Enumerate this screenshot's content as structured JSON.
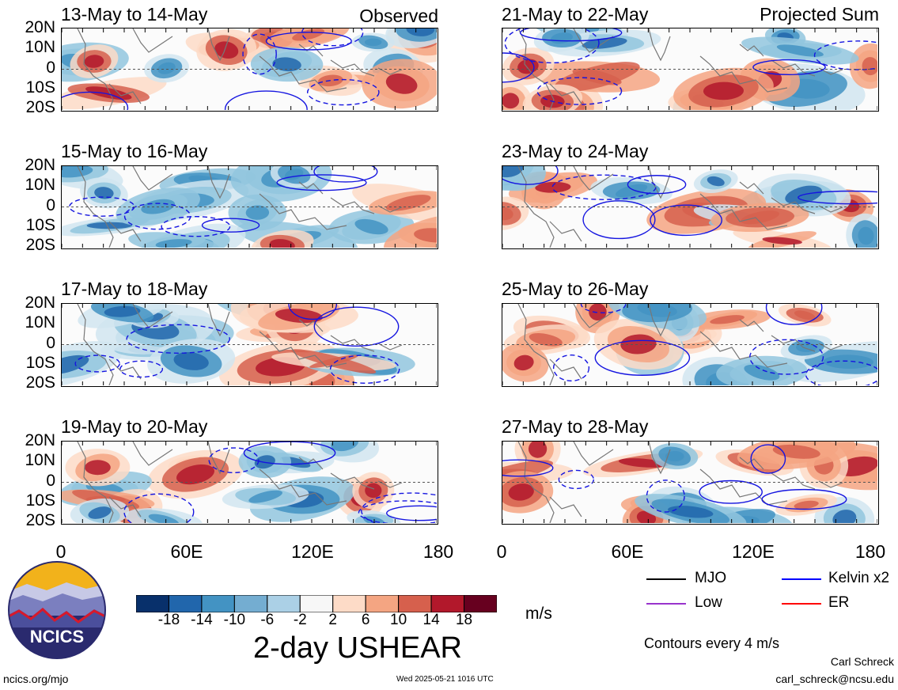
{
  "panels": {
    "left": [
      {
        "title": "13-May to 14-May",
        "tag": "Observed"
      },
      {
        "title": "15-May to 16-May",
        "tag": ""
      },
      {
        "title": "17-May to 18-May",
        "tag": ""
      },
      {
        "title": "19-May to 20-May",
        "tag": ""
      }
    ],
    "right": [
      {
        "title": "21-May to 22-May",
        "tag": "Projected Sum"
      },
      {
        "title": "23-May to 24-May",
        "tag": ""
      },
      {
        "title": "25-May to 26-May",
        "tag": ""
      },
      {
        "title": "27-May to 28-May",
        "tag": ""
      }
    ]
  },
  "axes": {
    "lat_labels": [
      "20N",
      "10N",
      "0",
      "10S",
      "20S"
    ],
    "lon_labels": [
      "0",
      "60E",
      "120E",
      "180"
    ]
  },
  "colorbar": {
    "labels": [
      "-18",
      "-14",
      "-10",
      "-6",
      "-2",
      "2",
      "6",
      "10",
      "14",
      "18"
    ],
    "colors": [
      "#08306b",
      "#2166ac",
      "#4393c3",
      "#74add1",
      "#abd0e6",
      "#f7f7f7",
      "#fddbc7",
      "#f4a582",
      "#d6604d",
      "#b2182b",
      "#67001f"
    ],
    "units": "m/s",
    "title": "2-day USHEAR"
  },
  "legend": {
    "items": [
      {
        "label": "MJO",
        "color": "#000000"
      },
      {
        "label": "Kelvin x2",
        "color": "#0000ff"
      },
      {
        "label": "Low",
        "color": "#9933cc"
      },
      {
        "label": "ER",
        "color": "#ff0000"
      }
    ],
    "note": "Contours every 4 m/s"
  },
  "footer": {
    "site": "ncics.org/mjo",
    "timestamp": "Wed 2025-05-21 1016 UTC",
    "author": "Carl Schreck",
    "email": "carl_schreck@ncsu.edu",
    "logo_text": "NCICS"
  },
  "chart_data": {
    "type": "heatmap",
    "variable": "2-day USHEAR",
    "units": "m/s",
    "x_range": [
      0,
      180
    ],
    "y_range": [
      -20,
      20
    ],
    "contour_interval": 4,
    "color_levels": [
      -18,
      -14,
      -10,
      -6,
      -2,
      2,
      6,
      10,
      14,
      18
    ]
  }
}
